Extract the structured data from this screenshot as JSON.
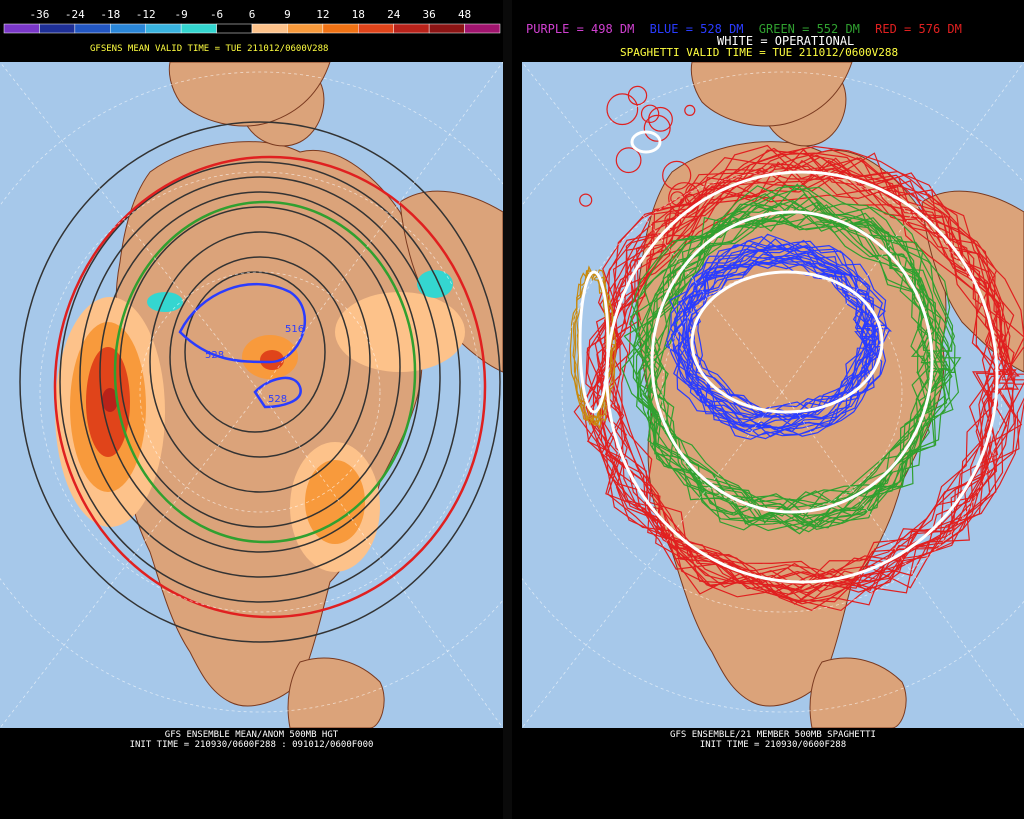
{
  "left_panel": {
    "colorbar": {
      "labels": [
        "-36",
        "-24",
        "-18",
        "-12",
        "-9",
        "-6",
        "6",
        "9",
        "12",
        "18",
        "24",
        "36",
        "48"
      ],
      "colors": [
        "#7a37c8",
        "#1e2f96",
        "#2256c2",
        "#2a86d8",
        "#39b3e0",
        "#34d6d0",
        "#000000",
        "#fdc28a",
        "#f89a3c",
        "#f07214",
        "#e0441a",
        "#b8221a",
        "#8b1414",
        "#a0146e"
      ]
    },
    "valid_time": "GFSENS MEAN VALID TIME = TUE 211012/0600V288",
    "contour_labels": [
      "516",
      "528",
      "528"
    ],
    "footer_line1": "GFS ENSEMBLE MEAN/ANOM 500MB HGT",
    "footer_line2": "INIT TIME = 210930/0600F288 : 091012/0600F000"
  },
  "right_panel": {
    "legend": {
      "purple": "PURPLE = 498 DM",
      "blue": "BLUE = 528 DM",
      "green": "GREEN = 552 DM",
      "red": "RED = 576 DM",
      "white": "WHITE = OPERATIONAL"
    },
    "valid_time": "SPAGHETTI VALID TIME = TUE 211012/0600V288",
    "footer_line1": "GFS ENSEMBLE/21 MEMBER 500MB SPAGHETTI",
    "footer_line2": "INIT TIME = 210930/0600F288"
  },
  "colors": {
    "ocean": "#a6c8ea",
    "land": "#dba37a",
    "border": "#7a3a20",
    "legend_purple": "#d040d0",
    "legend_blue": "#2a3cff",
    "legend_green": "#30a030",
    "legend_red": "#e02020",
    "valid_time": "#ffff40"
  }
}
